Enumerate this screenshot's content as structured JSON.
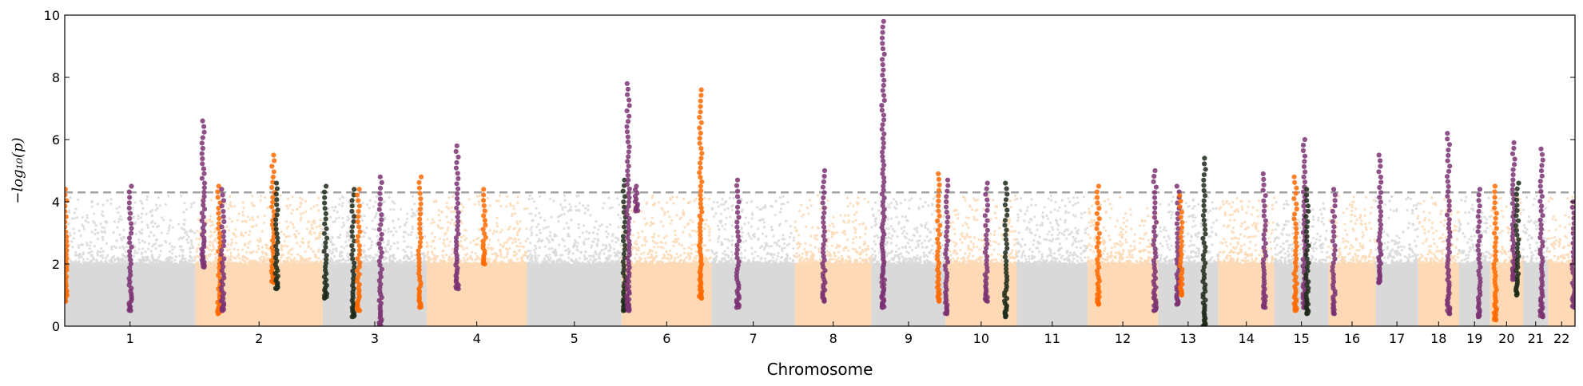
{
  "chart_data": {
    "type": "scatter",
    "subtype": "manhattan",
    "xlabel": "Chromosome",
    "ylabel": "−log₁₀(p)",
    "ylim": [
      0,
      10
    ],
    "yticks": [
      0,
      2,
      4,
      6,
      8,
      10
    ],
    "threshold": 4.3,
    "grid": false,
    "legend": "none",
    "colors": {
      "background_even": "#d9d9d9",
      "background_odd": "#fdd9b5",
      "highlight_purple": "#7b3373",
      "highlight_orange": "#ff6a00",
      "highlight_dark": "#1f2a1a",
      "threshold_line": "#a0a0a0"
    },
    "chromosomes": [
      {
        "label": "1",
        "length": 249
      },
      {
        "label": "2",
        "length": 243
      },
      {
        "label": "3",
        "length": 198
      },
      {
        "label": "4",
        "length": 191
      },
      {
        "label": "5",
        "length": 181
      },
      {
        "label": "6",
        "length": 171
      },
      {
        "label": "7",
        "length": 159
      },
      {
        "label": "8",
        "length": 146
      },
      {
        "label": "9",
        "length": 141
      },
      {
        "label": "10",
        "length": 136
      },
      {
        "label": "11",
        "length": 135
      },
      {
        "label": "12",
        "length": 134
      },
      {
        "label": "13",
        "length": 115
      },
      {
        "label": "14",
        "length": 107
      },
      {
        "label": "15",
        "length": 103
      },
      {
        "label": "16",
        "length": 90
      },
      {
        "label": "17",
        "length": 81
      },
      {
        "label": "18",
        "length": 78
      },
      {
        "label": "19",
        "length": 59
      },
      {
        "label": "20",
        "length": 63
      },
      {
        "label": "21",
        "length": 48
      },
      {
        "label": "22",
        "length": 51
      }
    ],
    "highlighted_loci": [
      {
        "chr": "1",
        "pos": 2,
        "min": 0.8,
        "max": 4.4,
        "color": "orange"
      },
      {
        "chr": "1",
        "pos": 125,
        "min": 0.5,
        "max": 4.5,
        "color": "purple"
      },
      {
        "chr": "2",
        "pos": 15,
        "min": 1.9,
        "max": 6.6,
        "color": "purple"
      },
      {
        "chr": "2",
        "pos": 45,
        "min": 0.4,
        "max": 4.5,
        "color": "orange"
      },
      {
        "chr": "2",
        "pos": 52,
        "min": 0.5,
        "max": 4.4,
        "color": "purple"
      },
      {
        "chr": "2",
        "pos": 148,
        "min": 1.4,
        "max": 5.5,
        "color": "orange"
      },
      {
        "chr": "2",
        "pos": 155,
        "min": 1.2,
        "max": 4.6,
        "color": "dark"
      },
      {
        "chr": "3",
        "pos": 5,
        "min": 0.9,
        "max": 4.5,
        "color": "dark"
      },
      {
        "chr": "3",
        "pos": 58,
        "min": 0.3,
        "max": 4.4,
        "color": "dark"
      },
      {
        "chr": "3",
        "pos": 68,
        "min": 0.5,
        "max": 4.4,
        "color": "orange"
      },
      {
        "chr": "3",
        "pos": 110,
        "min": 0.0,
        "max": 4.8,
        "color": "purple"
      },
      {
        "chr": "3",
        "pos": 185,
        "min": 0.6,
        "max": 4.8,
        "color": "orange"
      },
      {
        "chr": "4",
        "pos": 58,
        "min": 1.2,
        "max": 5.8,
        "color": "purple"
      },
      {
        "chr": "4",
        "pos": 110,
        "min": 2.0,
        "max": 4.4,
        "color": "orange"
      },
      {
        "chr": "6",
        "pos": 5,
        "min": 0.5,
        "max": 4.7,
        "color": "dark"
      },
      {
        "chr": "6",
        "pos": 12,
        "min": 0.5,
        "max": 7.8,
        "color": "purple"
      },
      {
        "chr": "6",
        "pos": 28,
        "min": 3.7,
        "max": 4.5,
        "color": "purple"
      },
      {
        "chr": "6",
        "pos": 150,
        "min": 0.9,
        "max": 7.6,
        "color": "orange"
      },
      {
        "chr": "7",
        "pos": 50,
        "min": 0.6,
        "max": 4.7,
        "color": "purple"
      },
      {
        "chr": "8",
        "pos": 55,
        "min": 0.8,
        "max": 5.0,
        "color": "purple"
      },
      {
        "chr": "9",
        "pos": 22,
        "min": 0.6,
        "max": 9.8,
        "color": "purple"
      },
      {
        "chr": "9",
        "pos": 128,
        "min": 0.8,
        "max": 4.9,
        "color": "orange"
      },
      {
        "chr": "10",
        "pos": 2,
        "min": 0.4,
        "max": 4.7,
        "color": "purple"
      },
      {
        "chr": "10",
        "pos": 78,
        "min": 0.8,
        "max": 4.6,
        "color": "purple"
      },
      {
        "chr": "10",
        "pos": 115,
        "min": 0.3,
        "max": 4.6,
        "color": "dark"
      },
      {
        "chr": "12",
        "pos": 20,
        "min": 0.7,
        "max": 4.5,
        "color": "orange"
      },
      {
        "chr": "12",
        "pos": 128,
        "min": 0.5,
        "max": 5.0,
        "color": "purple"
      },
      {
        "chr": "13",
        "pos": 38,
        "min": 0.7,
        "max": 4.5,
        "color": "purple"
      },
      {
        "chr": "13",
        "pos": 44,
        "min": 1.0,
        "max": 4.2,
        "color": "orange"
      },
      {
        "chr": "13",
        "pos": 88,
        "min": 0.0,
        "max": 5.4,
        "color": "dark"
      },
      {
        "chr": "14",
        "pos": 88,
        "min": 0.6,
        "max": 4.9,
        "color": "purple"
      },
      {
        "chr": "15",
        "pos": 40,
        "min": 0.5,
        "max": 4.8,
        "color": "orange"
      },
      {
        "chr": "15",
        "pos": 57,
        "min": 0.6,
        "max": 6.0,
        "color": "purple"
      },
      {
        "chr": "15",
        "pos": 63,
        "min": 0.4,
        "max": 4.4,
        "color": "dark"
      },
      {
        "chr": "16",
        "pos": 10,
        "min": 0.4,
        "max": 4.4,
        "color": "purple"
      },
      {
        "chr": "17",
        "pos": 8,
        "min": 1.4,
        "max": 5.5,
        "color": "purple"
      },
      {
        "chr": "18",
        "pos": 58,
        "min": 0.4,
        "max": 6.2,
        "color": "purple"
      },
      {
        "chr": "19",
        "pos": 38,
        "min": 0.3,
        "max": 4.4,
        "color": "purple"
      },
      {
        "chr": "20",
        "pos": 10,
        "min": 0.2,
        "max": 4.5,
        "color": "orange"
      },
      {
        "chr": "20",
        "pos": 45,
        "min": 1.5,
        "max": 5.9,
        "color": "purple"
      },
      {
        "chr": "20",
        "pos": 52,
        "min": 1.0,
        "max": 4.6,
        "color": "dark"
      },
      {
        "chr": "21",
        "pos": 35,
        "min": 0.3,
        "max": 5.7,
        "color": "purple"
      },
      {
        "chr": "22",
        "pos": 48,
        "min": 0.6,
        "max": 4.0,
        "color": "purple"
      }
    ]
  }
}
